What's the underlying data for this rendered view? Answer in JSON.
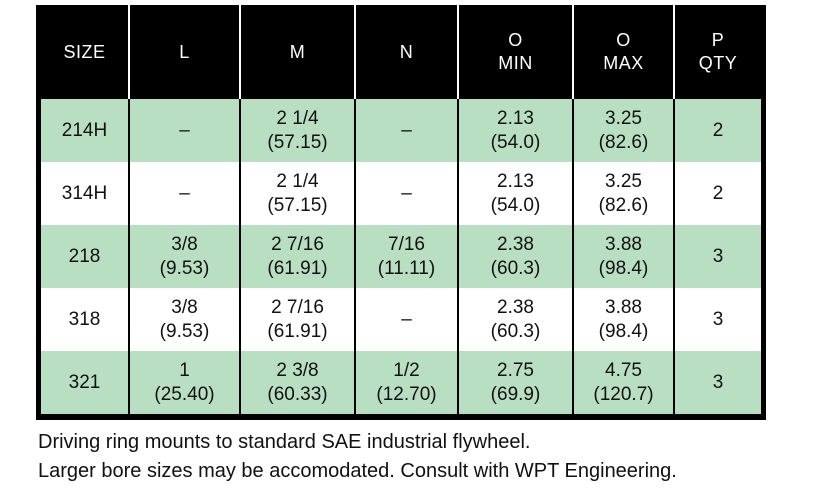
{
  "colors": {
    "page_bg": "#ffffff",
    "header_bg": "#000000",
    "header_text": "#ffffff",
    "row_green": "#b9dfc3",
    "border_black": "#000000",
    "body_text": "#111111"
  },
  "table": {
    "headers": [
      [
        "SIZE"
      ],
      [
        "L"
      ],
      [
        "M"
      ],
      [
        "N"
      ],
      [
        "O",
        "MIN"
      ],
      [
        "O",
        "MAX"
      ],
      [
        "P",
        "QTY"
      ]
    ],
    "rows": [
      [
        [
          "214H"
        ],
        [
          "–"
        ],
        [
          "2 1/4",
          "(57.15)"
        ],
        [
          "–"
        ],
        [
          "2.13",
          "(54.0)"
        ],
        [
          "3.25",
          "(82.6)"
        ],
        [
          "2"
        ]
      ],
      [
        [
          "314H"
        ],
        [
          "–"
        ],
        [
          "2 1/4",
          "(57.15)"
        ],
        [
          "–"
        ],
        [
          "2.13",
          "(54.0)"
        ],
        [
          "3.25",
          "(82.6)"
        ],
        [
          "2"
        ]
      ],
      [
        [
          "218"
        ],
        [
          "3/8",
          "(9.53)"
        ],
        [
          "2 7/16",
          "(61.91)"
        ],
        [
          "7/16",
          "(11.11)"
        ],
        [
          "2.38",
          "(60.3)"
        ],
        [
          "3.88",
          "(98.4)"
        ],
        [
          "3"
        ]
      ],
      [
        [
          "318"
        ],
        [
          "3/8",
          "(9.53)"
        ],
        [
          "2 7/16",
          "(61.91)"
        ],
        [
          "–"
        ],
        [
          "2.38",
          "(60.3)"
        ],
        [
          "3.88",
          "(98.4)"
        ],
        [
          "3"
        ]
      ],
      [
        [
          "321"
        ],
        [
          "1",
          "(25.40)"
        ],
        [
          "2 3/8",
          "(60.33)"
        ],
        [
          "1/2",
          "(12.70)"
        ],
        [
          "2.75",
          "(69.9)"
        ],
        [
          "4.75",
          "(120.7)"
        ],
        [
          "3"
        ]
      ]
    ]
  },
  "notes": [
    "Driving ring mounts to standard SAE industrial flywheel.",
    "Larger bore sizes may be accomodated. Consult with WPT Engineering."
  ]
}
